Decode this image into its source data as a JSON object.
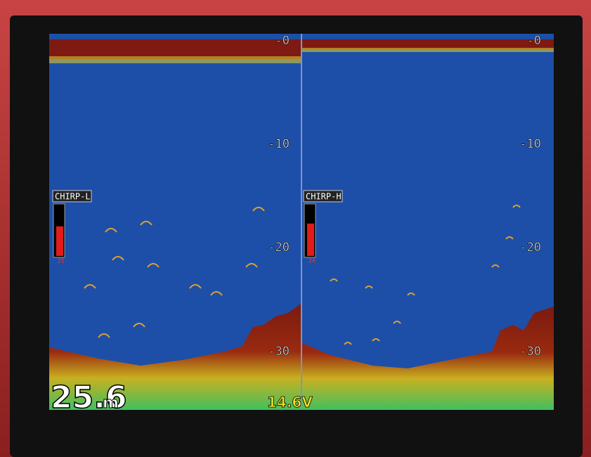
{
  "panels": [
    {
      "label": "CHIRP-L",
      "gain": "21",
      "depth_ticks": [
        "-0",
        "-10",
        "-20",
        "-30"
      ]
    },
    {
      "label": "CHIRP-H",
      "gain": "24",
      "depth_ticks": [
        "-0",
        "-10",
        "-20",
        "-30"
      ]
    }
  ],
  "depth": {
    "value": "25.6",
    "unit": "m"
  },
  "voltage": "14.6V"
}
